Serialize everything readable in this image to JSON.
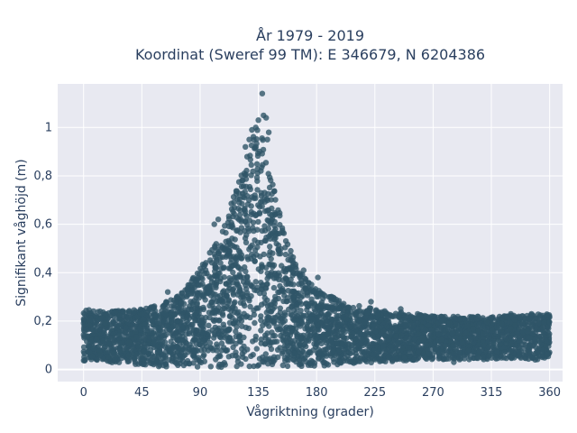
{
  "chart_data": {
    "type": "scatter",
    "title": "År 1979 - 2019",
    "subtitle": "Koordinat (Sweref 99 TM): E 346679, N 6204386",
    "xlabel": "Vågriktning (grader)",
    "ylabel": "Signifikant våghöjd (m)",
    "xlim": [
      -20,
      370
    ],
    "ylim": [
      -0.05,
      1.18
    ],
    "x_ticks": [
      0,
      45,
      90,
      135,
      180,
      225,
      270,
      315,
      360
    ],
    "x_tick_labels": [
      "0",
      "45",
      "90",
      "135",
      "180",
      "225",
      "270",
      "315",
      "360"
    ],
    "y_ticks": [
      0,
      0.2,
      0.4,
      0.6,
      0.8,
      1.0
    ],
    "y_tick_labels": [
      "0",
      "0,2",
      "0,4",
      "0,6",
      "0,8",
      "1"
    ],
    "grid": true,
    "colors": {
      "marker": "#2f5568",
      "plot_bg": "#e8e9f1",
      "grid": "#ffffff",
      "text": "#2a3f5f"
    },
    "envelope": [
      {
        "x": 0,
        "ymin": 0.03,
        "ymax": 0.25
      },
      {
        "x": 20,
        "ymin": 0.03,
        "ymax": 0.24
      },
      {
        "x": 45,
        "ymin": 0.02,
        "ymax": 0.25
      },
      {
        "x": 60,
        "ymin": 0.01,
        "ymax": 0.27
      },
      {
        "x": 75,
        "ymin": 0.01,
        "ymax": 0.31
      },
      {
        "x": 90,
        "ymin": 0.01,
        "ymax": 0.42
      },
      {
        "x": 105,
        "ymin": 0.01,
        "ymax": 0.55
      },
      {
        "x": 115,
        "ymin": 0.01,
        "ymax": 0.7
      },
      {
        "x": 125,
        "ymin": 0.01,
        "ymax": 0.86
      },
      {
        "x": 130,
        "ymin": 0.01,
        "ymax": 0.95
      },
      {
        "x": 135,
        "ymin": 0.01,
        "ymax": 1.0
      },
      {
        "x": 140,
        "ymin": 0.01,
        "ymax": 0.93
      },
      {
        "x": 145,
        "ymin": 0.01,
        "ymax": 0.8
      },
      {
        "x": 155,
        "ymin": 0.01,
        "ymax": 0.58
      },
      {
        "x": 165,
        "ymin": 0.01,
        "ymax": 0.42
      },
      {
        "x": 180,
        "ymin": 0.01,
        "ymax": 0.33
      },
      {
        "x": 200,
        "ymin": 0.02,
        "ymax": 0.28
      },
      {
        "x": 225,
        "ymin": 0.03,
        "ymax": 0.25
      },
      {
        "x": 270,
        "ymin": 0.04,
        "ymax": 0.22
      },
      {
        "x": 315,
        "ymin": 0.04,
        "ymax": 0.22
      },
      {
        "x": 360,
        "ymin": 0.04,
        "ymax": 0.23
      }
    ],
    "outliers": [
      {
        "x": 138,
        "y": 1.14
      },
      {
        "x": 135,
        "y": 1.03
      },
      {
        "x": 139,
        "y": 1.05
      },
      {
        "x": 141,
        "y": 1.04
      },
      {
        "x": 133,
        "y": 1.0
      },
      {
        "x": 143,
        "y": 0.98
      },
      {
        "x": 128,
        "y": 0.95
      },
      {
        "x": 130,
        "y": 0.99
      },
      {
        "x": 142,
        "y": 0.95
      },
      {
        "x": 125,
        "y": 0.92
      },
      {
        "x": 101,
        "y": 0.6
      },
      {
        "x": 104,
        "y": 0.62
      },
      {
        "x": 160,
        "y": 0.49
      },
      {
        "x": 170,
        "y": 0.41
      },
      {
        "x": 181,
        "y": 0.38
      },
      {
        "x": 176,
        "y": 0.33
      },
      {
        "x": 65,
        "y": 0.32
      },
      {
        "x": 72,
        "y": 0.3
      },
      {
        "x": 222,
        "y": 0.28
      },
      {
        "x": 245,
        "y": 0.25
      },
      {
        "x": 258,
        "y": 0.23
      },
      {
        "x": 264,
        "y": 0.05
      },
      {
        "x": 330,
        "y": 0.23
      },
      {
        "x": 346,
        "y": 0.23
      },
      {
        "x": 255,
        "y": 0.04
      },
      {
        "x": 286,
        "y": 0.03
      }
    ]
  }
}
